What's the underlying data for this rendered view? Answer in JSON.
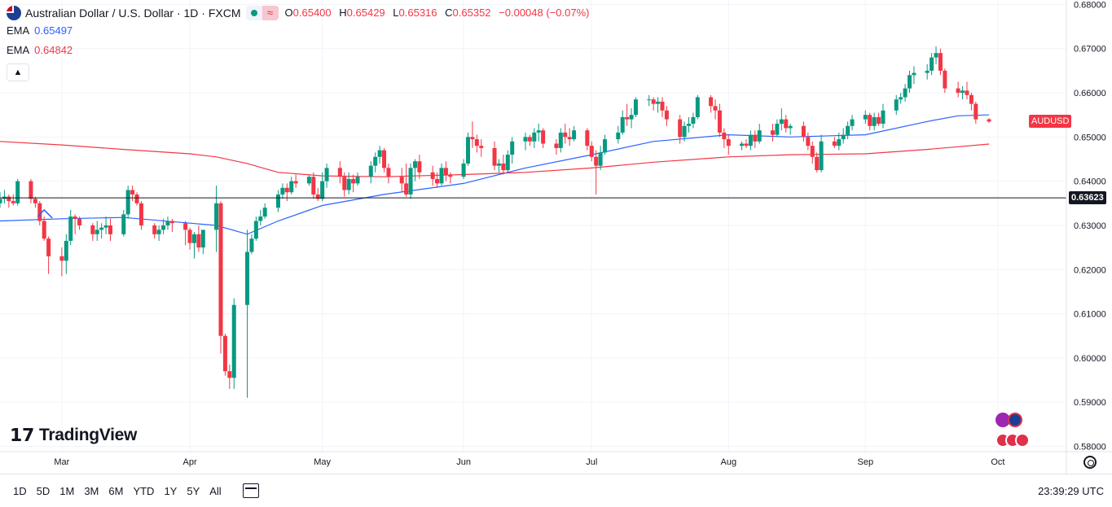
{
  "header": {
    "symbol_title": "Australian Dollar / U.S. Dollar · 1D · FXCM",
    "ohlc": {
      "o_label": "O",
      "o_value": "0.65400",
      "h_label": "H",
      "h_value": "0.65429",
      "l_label": "L",
      "l_value": "0.65316",
      "c_label": "C",
      "c_value": "0.65352",
      "change": "−0.00048 (−0.07%)"
    },
    "ema1": {
      "name": "EMA",
      "value": "0.65497",
      "color": "#2962ff"
    },
    "ema2": {
      "name": "EMA",
      "value": "0.64842",
      "color": "#f23645"
    }
  },
  "colors": {
    "up": "#089981",
    "down": "#f23645",
    "grid": "#f0f3fa",
    "ema_fast": "#2962ff",
    "ema_slow": "#f23645"
  },
  "logo_text": "TradingView",
  "symbol_tag": "AUDUSD",
  "price_line_label": "0.63623",
  "time_ranges": [
    "1D",
    "5D",
    "1M",
    "3M",
    "6M",
    "YTD",
    "1Y",
    "5Y",
    "All"
  ],
  "clock": "23:39:29 UTC",
  "chart_data": {
    "type": "candlestick",
    "symbol": "AUDUSD",
    "interval": "1D",
    "y_ticks": [
      "0.68000",
      "0.67000",
      "0.66000",
      "0.65000",
      "0.64000",
      "0.63000",
      "0.62000",
      "0.61000",
      "0.60000",
      "0.59000",
      "0.58000"
    ],
    "y_tick_values": [
      0.68,
      0.67,
      0.66,
      0.65,
      0.64,
      0.63,
      0.62,
      0.61,
      0.6,
      0.59,
      0.58
    ],
    "ylim": [
      0.5788,
      0.681
    ],
    "x_ticks": [
      "Mar",
      "Apr",
      "May",
      "Jun",
      "Jul",
      "Aug",
      "Sep",
      "Oct"
    ],
    "x_tick_dates": [
      "2025-03-03",
      "2025-04-01",
      "2025-05-01",
      "2025-06-02",
      "2025-07-01",
      "2025-08-01",
      "2025-09-01",
      "2025-10-01"
    ],
    "xlim": [
      "2025-02-17",
      "2025-10-06"
    ],
    "horizontal_line": 0.63623,
    "candles": [
      [
        "2025-02-17",
        0.635,
        0.6375,
        0.634,
        0.636
      ],
      [
        "2025-02-18",
        0.636,
        0.638,
        0.635,
        0.6365
      ],
      [
        "2025-02-19",
        0.6365,
        0.637,
        0.634,
        0.6355
      ],
      [
        "2025-02-20",
        0.6355,
        0.637,
        0.6345,
        0.635
      ],
      [
        "2025-02-21",
        0.635,
        0.6405,
        0.6345,
        0.64
      ],
      [
        "2025-02-24",
        0.64,
        0.6405,
        0.635,
        0.636
      ],
      [
        "2025-02-25",
        0.636,
        0.6365,
        0.634,
        0.635
      ],
      [
        "2025-02-26",
        0.635,
        0.6355,
        0.63,
        0.631
      ],
      [
        "2025-02-27",
        0.631,
        0.632,
        0.6265,
        0.627
      ],
      [
        "2025-02-28",
        0.627,
        0.6275,
        0.619,
        0.623
      ],
      [
        "2025-03-03",
        0.623,
        0.625,
        0.6185,
        0.622
      ],
      [
        "2025-03-04",
        0.622,
        0.628,
        0.619,
        0.6265
      ],
      [
        "2025-03-05",
        0.6265,
        0.6335,
        0.6255,
        0.632
      ],
      [
        "2025-03-06",
        0.632,
        0.6325,
        0.628,
        0.6315
      ],
      [
        "2025-03-07",
        0.6315,
        0.632,
        0.629,
        0.63
      ],
      [
        "2025-03-10",
        0.63,
        0.6305,
        0.6265,
        0.628
      ],
      [
        "2025-03-11",
        0.628,
        0.631,
        0.6265,
        0.629
      ],
      [
        "2025-03-12",
        0.629,
        0.6305,
        0.627,
        0.6295
      ],
      [
        "2025-03-13",
        0.6295,
        0.632,
        0.628,
        0.63
      ],
      [
        "2025-03-14",
        0.63,
        0.6315,
        0.6265,
        0.628
      ],
      [
        "2025-03-17",
        0.628,
        0.6335,
        0.6275,
        0.6325
      ],
      [
        "2025-03-18",
        0.6325,
        0.639,
        0.6315,
        0.638
      ],
      [
        "2025-03-19",
        0.638,
        0.639,
        0.6355,
        0.637
      ],
      [
        "2025-03-20",
        0.637,
        0.6375,
        0.6345,
        0.635
      ],
      [
        "2025-03-21",
        0.635,
        0.6355,
        0.629,
        0.63
      ],
      [
        "2025-03-24",
        0.63,
        0.6305,
        0.627,
        0.628
      ],
      [
        "2025-03-25",
        0.628,
        0.63,
        0.6265,
        0.629
      ],
      [
        "2025-03-26",
        0.629,
        0.6315,
        0.628,
        0.63
      ],
      [
        "2025-03-27",
        0.63,
        0.632,
        0.629,
        0.631
      ],
      [
        "2025-03-28",
        0.631,
        0.6315,
        0.6285,
        0.6305
      ],
      [
        "2025-03-31",
        0.6305,
        0.631,
        0.6255,
        0.629
      ],
      [
        "2025-04-01",
        0.629,
        0.6295,
        0.6245,
        0.626
      ],
      [
        "2025-04-02",
        0.626,
        0.6285,
        0.6225,
        0.628
      ],
      [
        "2025-04-03",
        0.628,
        0.63,
        0.624,
        0.625
      ],
      [
        "2025-04-04",
        0.625,
        0.629,
        0.6235,
        0.629
      ],
      [
        "2025-04-07",
        0.629,
        0.639,
        0.624,
        0.635
      ],
      [
        "2025-04-08",
        0.635,
        0.6355,
        0.601,
        0.605
      ],
      [
        "2025-04-09",
        0.605,
        0.6055,
        0.596,
        0.597
      ],
      [
        "2025-04-10",
        0.597,
        0.5985,
        0.593,
        0.5955
      ],
      [
        "2025-04-11",
        0.5955,
        0.6135,
        0.593,
        0.612
      ],
      [
        "2025-04-14",
        0.612,
        0.629,
        0.591,
        0.624
      ],
      [
        "2025-04-15",
        0.624,
        0.628,
        0.6235,
        0.627
      ],
      [
        "2025-04-16",
        0.627,
        0.632,
        0.6265,
        0.631
      ],
      [
        "2025-04-17",
        0.631,
        0.6335,
        0.63,
        0.632
      ],
      [
        "2025-04-18",
        0.632,
        0.635,
        0.6315,
        0.634
      ],
      [
        "2025-04-21",
        0.634,
        0.638,
        0.633,
        0.637
      ],
      [
        "2025-04-22",
        0.637,
        0.6395,
        0.636,
        0.6385
      ],
      [
        "2025-04-23",
        0.6385,
        0.6395,
        0.6355,
        0.6375
      ],
      [
        "2025-04-24",
        0.6375,
        0.641,
        0.637,
        0.64
      ],
      [
        "2025-04-25",
        0.64,
        0.6415,
        0.6385,
        0.6395
      ],
      [
        "2025-04-28",
        0.6395,
        0.6415,
        0.639,
        0.641
      ],
      [
        "2025-04-29",
        0.641,
        0.642,
        0.636,
        0.637
      ],
      [
        "2025-04-30",
        0.637,
        0.6385,
        0.6355,
        0.636
      ],
      [
        "2025-05-01",
        0.636,
        0.642,
        0.6355,
        0.64
      ],
      [
        "2025-05-02",
        0.64,
        0.644,
        0.6385,
        0.643
      ],
      [
        "2025-05-05",
        0.643,
        0.6445,
        0.6395,
        0.641
      ],
      [
        "2025-05-06",
        0.641,
        0.642,
        0.6365,
        0.638
      ],
      [
        "2025-05-07",
        0.638,
        0.642,
        0.637,
        0.6405
      ],
      [
        "2025-05-08",
        0.6405,
        0.6415,
        0.6375,
        0.6395
      ],
      [
        "2025-05-09",
        0.6395,
        0.642,
        0.639,
        0.641
      ],
      [
        "2025-05-12",
        0.641,
        0.6445,
        0.6395,
        0.6435
      ],
      [
        "2025-05-13",
        0.6435,
        0.6465,
        0.642,
        0.6455
      ],
      [
        "2025-05-14",
        0.6455,
        0.648,
        0.644,
        0.647
      ],
      [
        "2025-05-15",
        0.647,
        0.6475,
        0.642,
        0.643
      ],
      [
        "2025-05-16",
        0.643,
        0.644,
        0.6395,
        0.641
      ],
      [
        "2025-05-19",
        0.641,
        0.643,
        0.6375,
        0.6395
      ],
      [
        "2025-05-20",
        0.6395,
        0.644,
        0.6365,
        0.637
      ],
      [
        "2025-05-21",
        0.637,
        0.644,
        0.636,
        0.643
      ],
      [
        "2025-05-22",
        0.643,
        0.645,
        0.64,
        0.6445
      ],
      [
        "2025-05-23",
        0.6445,
        0.646,
        0.6405,
        0.642
      ],
      [
        "2025-05-26",
        0.642,
        0.6435,
        0.639,
        0.6405
      ],
      [
        "2025-05-27",
        0.6405,
        0.642,
        0.6385,
        0.6395
      ],
      [
        "2025-05-28",
        0.6395,
        0.644,
        0.639,
        0.643
      ],
      [
        "2025-05-29",
        0.643,
        0.6445,
        0.64,
        0.6415
      ],
      [
        "2025-05-30",
        0.6415,
        0.642,
        0.6395,
        0.641
      ],
      [
        "2025-06-02",
        0.641,
        0.645,
        0.6405,
        0.644
      ],
      [
        "2025-06-03",
        0.644,
        0.651,
        0.6435,
        0.65
      ],
      [
        "2025-06-04",
        0.65,
        0.6535,
        0.6475,
        0.6495
      ],
      [
        "2025-06-05",
        0.6495,
        0.6505,
        0.6465,
        0.648
      ],
      [
        "2025-06-06",
        0.648,
        0.6495,
        0.6455,
        0.6475
      ],
      [
        "2025-06-09",
        0.6475,
        0.649,
        0.6425,
        0.6435
      ],
      [
        "2025-06-10",
        0.6435,
        0.645,
        0.642,
        0.644
      ],
      [
        "2025-06-11",
        0.644,
        0.646,
        0.6415,
        0.6425
      ],
      [
        "2025-06-12",
        0.6425,
        0.647,
        0.642,
        0.646
      ],
      [
        "2025-06-13",
        0.646,
        0.65,
        0.644,
        0.649
      ],
      [
        "2025-06-16",
        0.649,
        0.651,
        0.647,
        0.65
      ],
      [
        "2025-06-17",
        0.65,
        0.6505,
        0.648,
        0.649
      ],
      [
        "2025-06-18",
        0.649,
        0.652,
        0.6475,
        0.651
      ],
      [
        "2025-06-19",
        0.651,
        0.653,
        0.649,
        0.6515
      ],
      [
        "2025-06-20",
        0.6515,
        0.652,
        0.6475,
        0.6485
      ],
      [
        "2025-06-23",
        0.6485,
        0.6495,
        0.646,
        0.6475
      ],
      [
        "2025-06-24",
        0.6475,
        0.652,
        0.6465,
        0.651
      ],
      [
        "2025-06-25",
        0.651,
        0.653,
        0.6485,
        0.65
      ],
      [
        "2025-06-26",
        0.65,
        0.652,
        0.648,
        0.6495
      ],
      [
        "2025-06-27",
        0.6495,
        0.6525,
        0.649,
        0.6515
      ],
      [
        "2025-06-30",
        0.6515,
        0.652,
        0.647,
        0.648
      ],
      [
        "2025-07-01",
        0.648,
        0.649,
        0.6445,
        0.6455
      ],
      [
        "2025-07-02",
        0.6455,
        0.647,
        0.637,
        0.6435
      ],
      [
        "2025-07-03",
        0.6435,
        0.648,
        0.6425,
        0.6465
      ],
      [
        "2025-07-04",
        0.6465,
        0.6505,
        0.646,
        0.6495
      ],
      [
        "2025-07-07",
        0.6495,
        0.6525,
        0.6485,
        0.651
      ],
      [
        "2025-07-08",
        0.651,
        0.656,
        0.6505,
        0.6545
      ],
      [
        "2025-07-09",
        0.6545,
        0.6575,
        0.6525,
        0.654
      ],
      [
        "2025-07-10",
        0.654,
        0.6565,
        0.652,
        0.655
      ],
      [
        "2025-07-11",
        0.655,
        0.659,
        0.6545,
        0.6585
      ],
      [
        "2025-07-14",
        0.6585,
        0.6595,
        0.657,
        0.6585
      ],
      [
        "2025-07-15",
        0.6585,
        0.659,
        0.656,
        0.6575
      ],
      [
        "2025-07-16",
        0.6575,
        0.659,
        0.6555,
        0.658
      ],
      [
        "2025-07-17",
        0.658,
        0.659,
        0.6545,
        0.656
      ],
      [
        "2025-07-18",
        0.656,
        0.657,
        0.6525,
        0.654
      ],
      [
        "2025-07-21",
        0.654,
        0.655,
        0.6485,
        0.65
      ],
      [
        "2025-07-22",
        0.65,
        0.6535,
        0.649,
        0.6525
      ],
      [
        "2025-07-23",
        0.6525,
        0.6545,
        0.651,
        0.653
      ],
      [
        "2025-07-24",
        0.653,
        0.6555,
        0.652,
        0.6545
      ],
      [
        "2025-07-25",
        0.6545,
        0.6595,
        0.654,
        0.659
      ],
      [
        "2025-07-28",
        0.659,
        0.6595,
        0.6555,
        0.657
      ],
      [
        "2025-07-29",
        0.657,
        0.6585,
        0.654,
        0.656
      ],
      [
        "2025-07-30",
        0.656,
        0.6575,
        0.65,
        0.651
      ],
      [
        "2025-07-31",
        0.651,
        0.652,
        0.6475,
        0.6495
      ],
      [
        "2025-08-01",
        0.6495,
        0.6505,
        0.646,
        0.648
      ],
      [
        "2025-08-04",
        0.648,
        0.649,
        0.647,
        0.6485
      ],
      [
        "2025-08-05",
        0.6485,
        0.6495,
        0.6475,
        0.648
      ],
      [
        "2025-08-06",
        0.648,
        0.6515,
        0.647,
        0.6505
      ],
      [
        "2025-08-07",
        0.6505,
        0.6515,
        0.6475,
        0.649
      ],
      [
        "2025-08-08",
        0.649,
        0.653,
        0.6485,
        0.6515
      ],
      [
        "2025-08-11",
        0.6515,
        0.653,
        0.649,
        0.6505
      ],
      [
        "2025-08-12",
        0.6505,
        0.654,
        0.65,
        0.653
      ],
      [
        "2025-08-13",
        0.653,
        0.6565,
        0.6515,
        0.654
      ],
      [
        "2025-08-14",
        0.654,
        0.655,
        0.651,
        0.652
      ],
      [
        "2025-08-15",
        0.652,
        0.653,
        0.6505,
        0.6525
      ],
      [
        "2025-08-18",
        0.6525,
        0.6535,
        0.649,
        0.65
      ],
      [
        "2025-08-19",
        0.65,
        0.651,
        0.647,
        0.648
      ],
      [
        "2025-08-20",
        0.648,
        0.649,
        0.644,
        0.6455
      ],
      [
        "2025-08-21",
        0.6455,
        0.6465,
        0.642,
        0.6425
      ],
      [
        "2025-08-22",
        0.6425,
        0.6505,
        0.642,
        0.649
      ],
      [
        "2025-08-25",
        0.649,
        0.65,
        0.6475,
        0.648
      ],
      [
        "2025-08-26",
        0.648,
        0.651,
        0.647,
        0.6495
      ],
      [
        "2025-08-27",
        0.6495,
        0.652,
        0.6485,
        0.6505
      ],
      [
        "2025-08-28",
        0.6505,
        0.6535,
        0.6495,
        0.6525
      ],
      [
        "2025-08-29",
        0.6525,
        0.655,
        0.6515,
        0.654
      ],
      [
        "2025-09-01",
        0.654,
        0.656,
        0.653,
        0.655
      ],
      [
        "2025-09-02",
        0.655,
        0.6555,
        0.6515,
        0.6525
      ],
      [
        "2025-09-03",
        0.6525,
        0.6555,
        0.6515,
        0.6545
      ],
      [
        "2025-09-04",
        0.6545,
        0.6555,
        0.6525,
        0.653
      ],
      [
        "2025-09-05",
        0.653,
        0.6575,
        0.652,
        0.656
      ],
      [
        "2025-09-08",
        0.656,
        0.6595,
        0.655,
        0.6585
      ],
      [
        "2025-09-09",
        0.6585,
        0.66,
        0.6575,
        0.659
      ],
      [
        "2025-09-10",
        0.659,
        0.662,
        0.658,
        0.661
      ],
      [
        "2025-09-11",
        0.661,
        0.665,
        0.66,
        0.664
      ],
      [
        "2025-09-12",
        0.664,
        0.666,
        0.662,
        0.6645
      ],
      [
        "2025-09-15",
        0.6645,
        0.6665,
        0.663,
        0.665
      ],
      [
        "2025-09-16",
        0.665,
        0.669,
        0.664,
        0.668
      ],
      [
        "2025-09-17",
        0.668,
        0.6705,
        0.6665,
        0.669
      ],
      [
        "2025-09-18",
        0.669,
        0.67,
        0.664,
        0.665
      ],
      [
        "2025-09-19",
        0.665,
        0.6655,
        0.66,
        0.661
      ],
      [
        "2025-09-22",
        0.661,
        0.6625,
        0.659,
        0.66
      ],
      [
        "2025-09-23",
        0.66,
        0.6615,
        0.6585,
        0.6605
      ],
      [
        "2025-09-24",
        0.6605,
        0.6625,
        0.6585,
        0.6595
      ],
      [
        "2025-09-25",
        0.6595,
        0.66,
        0.656,
        0.6575
      ],
      [
        "2025-09-26",
        0.6575,
        0.658,
        0.653,
        0.654
      ],
      [
        "2025-09-29",
        0.654,
        0.6543,
        0.6532,
        0.6535
      ]
    ],
    "ema_fast": {
      "name": "EMA",
      "value": 0.65497,
      "dates": [
        "2025-02-17",
        "2025-03-03",
        "2025-03-17",
        "2025-04-01",
        "2025-04-07",
        "2025-04-14",
        "2025-04-21",
        "2025-05-01",
        "2025-05-15",
        "2025-06-02",
        "2025-06-16",
        "2025-07-01",
        "2025-07-15",
        "2025-08-01",
        "2025-08-15",
        "2025-09-01",
        "2025-09-15",
        "2025-09-22",
        "2025-09-29"
      ],
      "values": [
        0.631,
        0.6315,
        0.6318,
        0.6305,
        0.63,
        0.628,
        0.631,
        0.6345,
        0.637,
        0.6395,
        0.643,
        0.646,
        0.649,
        0.6505,
        0.65,
        0.6505,
        0.6535,
        0.6548,
        0.655
      ]
    },
    "ema_slow": {
      "name": "EMA",
      "value": 0.64842,
      "dates": [
        "2025-02-17",
        "2025-03-03",
        "2025-03-17",
        "2025-04-01",
        "2025-04-07",
        "2025-04-14",
        "2025-04-21",
        "2025-05-01",
        "2025-05-15",
        "2025-06-02",
        "2025-06-16",
        "2025-07-01",
        "2025-07-15",
        "2025-08-01",
        "2025-08-15",
        "2025-09-01",
        "2025-09-15",
        "2025-09-22",
        "2025-09-29"
      ],
      "values": [
        0.649,
        0.6482,
        0.6472,
        0.6462,
        0.6455,
        0.644,
        0.642,
        0.6412,
        0.641,
        0.6415,
        0.642,
        0.643,
        0.6443,
        0.6455,
        0.646,
        0.6462,
        0.6472,
        0.6478,
        0.6484
      ]
    }
  }
}
